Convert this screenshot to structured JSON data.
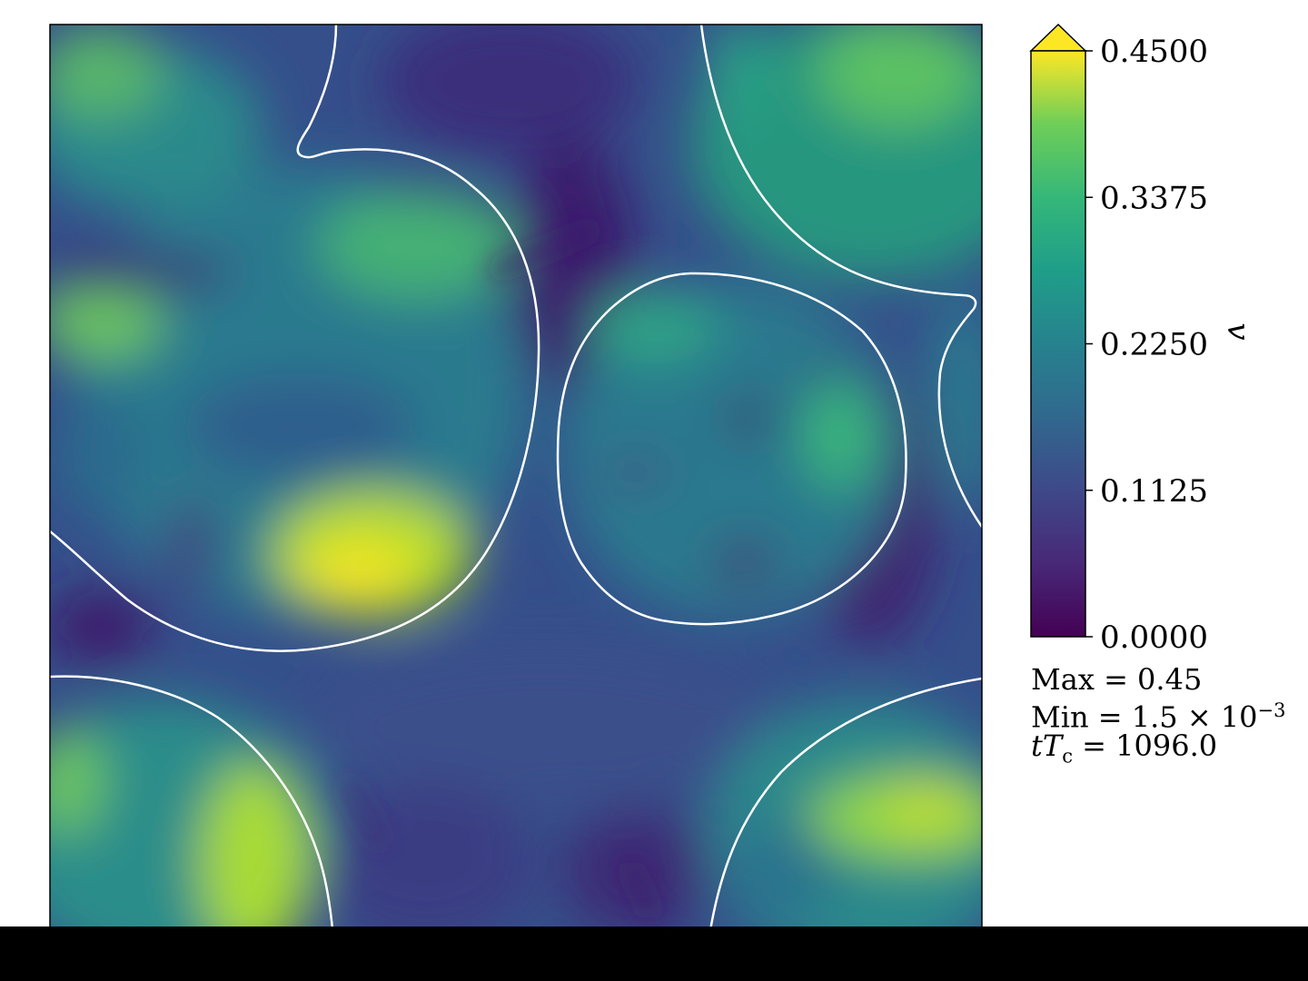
{
  "chart_data": {
    "type": "heatmap",
    "title": "",
    "xlabel": "",
    "ylabel": "",
    "colormap": "viridis",
    "colorbar": {
      "label": "v",
      "range": [
        0.0,
        0.45
      ],
      "ticks": [
        "0.0000",
        "0.1125",
        "0.2250",
        "0.3375",
        "0.4500"
      ],
      "extend": "max"
    },
    "interfaces": "white contours around bubble regions"
  },
  "annotations": {
    "max_prefix": "Max = ",
    "max_value": "0.45",
    "min_prefix": "Min = ",
    "min_value": "1.5 × 10",
    "min_exponent": "−3",
    "time_t": "t",
    "time_T": "T",
    "time_sub": "c",
    "time_value": " = 1096.0"
  },
  "colors": {
    "viridis_low": "#440154",
    "viridis_mid": "#21918c",
    "viridis_high": "#fde725",
    "contour": "#ffffff",
    "bottom_bar": "#000000"
  }
}
